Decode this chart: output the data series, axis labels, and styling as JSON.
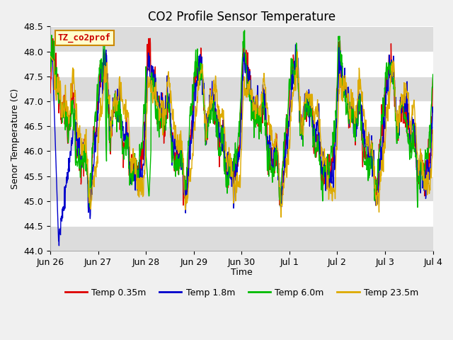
{
  "title": "CO2 Profile Sensor Temperature",
  "ylabel": "Senor Temperature (C)",
  "xlabel": "Time",
  "legend_title": "TZ_co2prof",
  "ylim": [
    44.0,
    48.5
  ],
  "yticks": [
    44.0,
    44.5,
    45.0,
    45.5,
    46.0,
    46.5,
    47.0,
    47.5,
    48.0,
    48.5
  ],
  "line_colors": [
    "#dd0000",
    "#0000cc",
    "#00bb00",
    "#ddaa00"
  ],
  "line_labels": [
    "Temp 0.35m",
    "Temp 1.8m",
    "Temp 6.0m",
    "Temp 23.5m"
  ],
  "line_width": 1.0,
  "bg_color": "#f0f0f0",
  "plot_bg": "#ffffff",
  "band_color": "#dcdcdc",
  "title_fontsize": 12,
  "label_fontsize": 9,
  "tick_fontsize": 9,
  "legend_fontsize": 9,
  "x_tick_labels": [
    "Jun 26",
    "Jun 27",
    "Jun 28",
    "Jun 29",
    "Jun 30",
    "Jul 1",
    "Jul 2",
    "Jul 3",
    "Jul 4"
  ],
  "legend_box_facecolor": "#ffffcc",
  "legend_box_edgecolor": "#cc8800",
  "legend_title_color": "#cc0000"
}
